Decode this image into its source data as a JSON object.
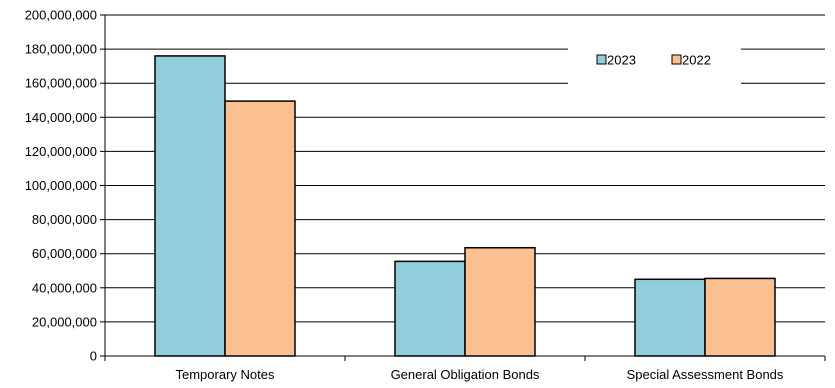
{
  "chart_data": {
    "type": "bar",
    "title": "",
    "xlabel": "",
    "ylabel": "",
    "categories": [
      "Temporary Notes",
      "General Obligation Bonds",
      "Special Assessment Bonds"
    ],
    "series": [
      {
        "name": "2023",
        "values": [
          176000000,
          55500000,
          45000000
        ],
        "color": "#92cddc"
      },
      {
        "name": "2022",
        "values": [
          149500000,
          63500000,
          45500000
        ],
        "color": "#fac090"
      }
    ],
    "ylim": [
      0,
      200000000
    ],
    "ytick_step": 20000000,
    "yticks": [
      "0",
      "20,000,000",
      "40,000,000",
      "60,000,000",
      "80,000,000",
      "100,000,000",
      "120,000,000",
      "140,000,000",
      "160,000,000",
      "180,000,000",
      "200,000,000"
    ],
    "grid": true,
    "legend_position": "top-right"
  }
}
